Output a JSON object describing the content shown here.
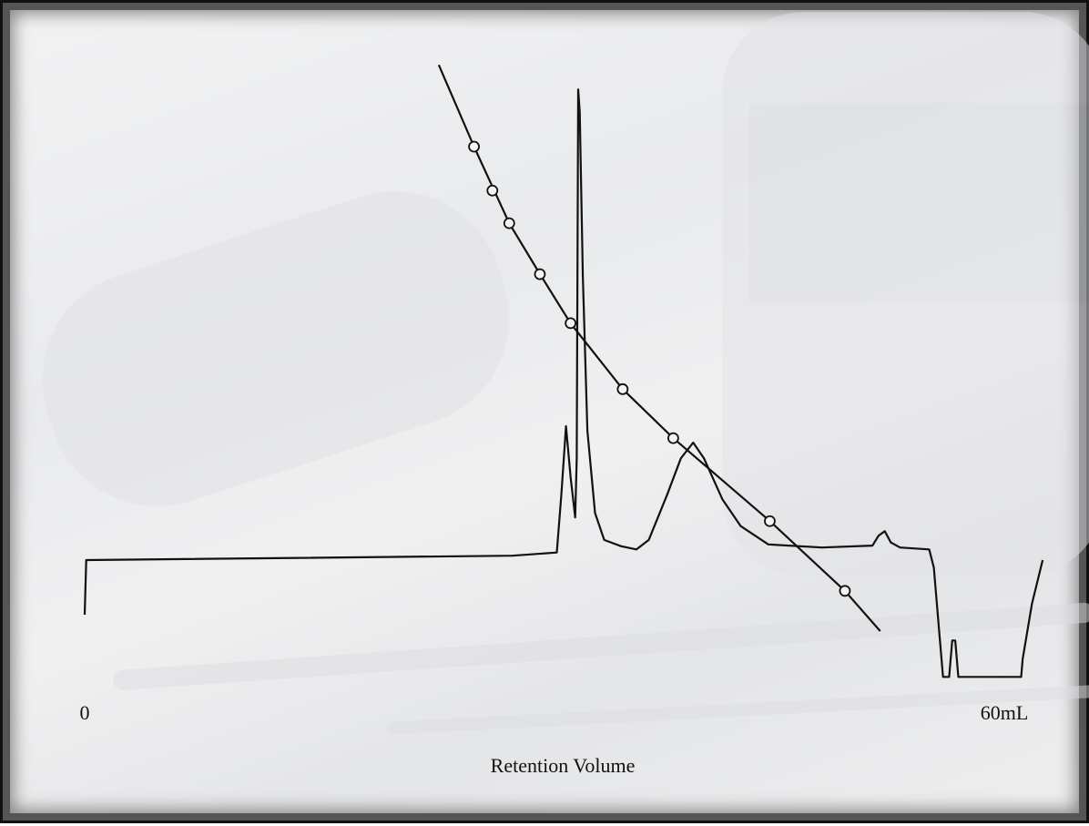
{
  "chart_data": {
    "type": "line",
    "x_label": "Retention Volume",
    "xlim": [
      0,
      65
    ],
    "ylim": [
      0,
      100
    ],
    "xticks": [
      0,
      {
        "value": 60,
        "label": "60mL"
      }
    ],
    "series": [
      {
        "color": "#111111",
        "line": true,
        "marker": "none",
        "x": [
          0,
          0.1,
          27.9,
          30.8,
          31.1,
          31.4,
          31.7,
          32.0,
          32.1,
          32.2,
          32.3,
          32.5,
          32.8,
          33.3,
          33.9,
          35.0,
          36.0,
          36.8,
          38.0,
          38.9,
          39.7,
          40.4,
          41.6,
          42.8,
          44.6,
          48.1,
          51.4,
          51.8,
          52.2,
          52.6,
          53.2,
          55.1,
          55.4,
          55.8,
          56.0,
          56.4,
          56.6,
          56.8,
          57.0,
          61.1,
          61.2,
          61.8,
          62.5
        ],
        "values": [
          11.3,
          20.0,
          20.7,
          21.2,
          30.4,
          41.3,
          33.3,
          26.8,
          36.2,
          94.9,
          91.3,
          65.2,
          40.6,
          27.5,
          23.2,
          22.2,
          21.7,
          23.2,
          30.4,
          36.2,
          38.7,
          36.2,
          29.7,
          25.4,
          22.5,
          22.0,
          22.3,
          23.9,
          24.6,
          22.8,
          22.0,
          21.7,
          18.8,
          7.2,
          1.4,
          1.4,
          7.2,
          7.2,
          1.4,
          1.4,
          4.3,
          13.0,
          20.0
        ]
      },
      {
        "color": "#111111",
        "line": true,
        "marker": "none",
        "x": [
          23.1,
          25.4,
          27.7,
          29.7,
          31.7,
          35.1,
          38.4,
          44.7,
          49.6,
          51.9
        ],
        "values": [
          98.8,
          85.8,
          73.6,
          65.5,
          57.7,
          47.2,
          39.4,
          26.2,
          15.1,
          8.7
        ]
      },
      {
        "color": "#111111",
        "line": false,
        "marker": "circle",
        "x": [
          25.4,
          26.6,
          27.7,
          29.7,
          31.7,
          35.1,
          38.4,
          44.7,
          49.6
        ],
        "values": [
          85.8,
          78.8,
          73.6,
          65.5,
          57.7,
          47.2,
          39.4,
          26.2,
          15.1
        ]
      }
    ]
  }
}
